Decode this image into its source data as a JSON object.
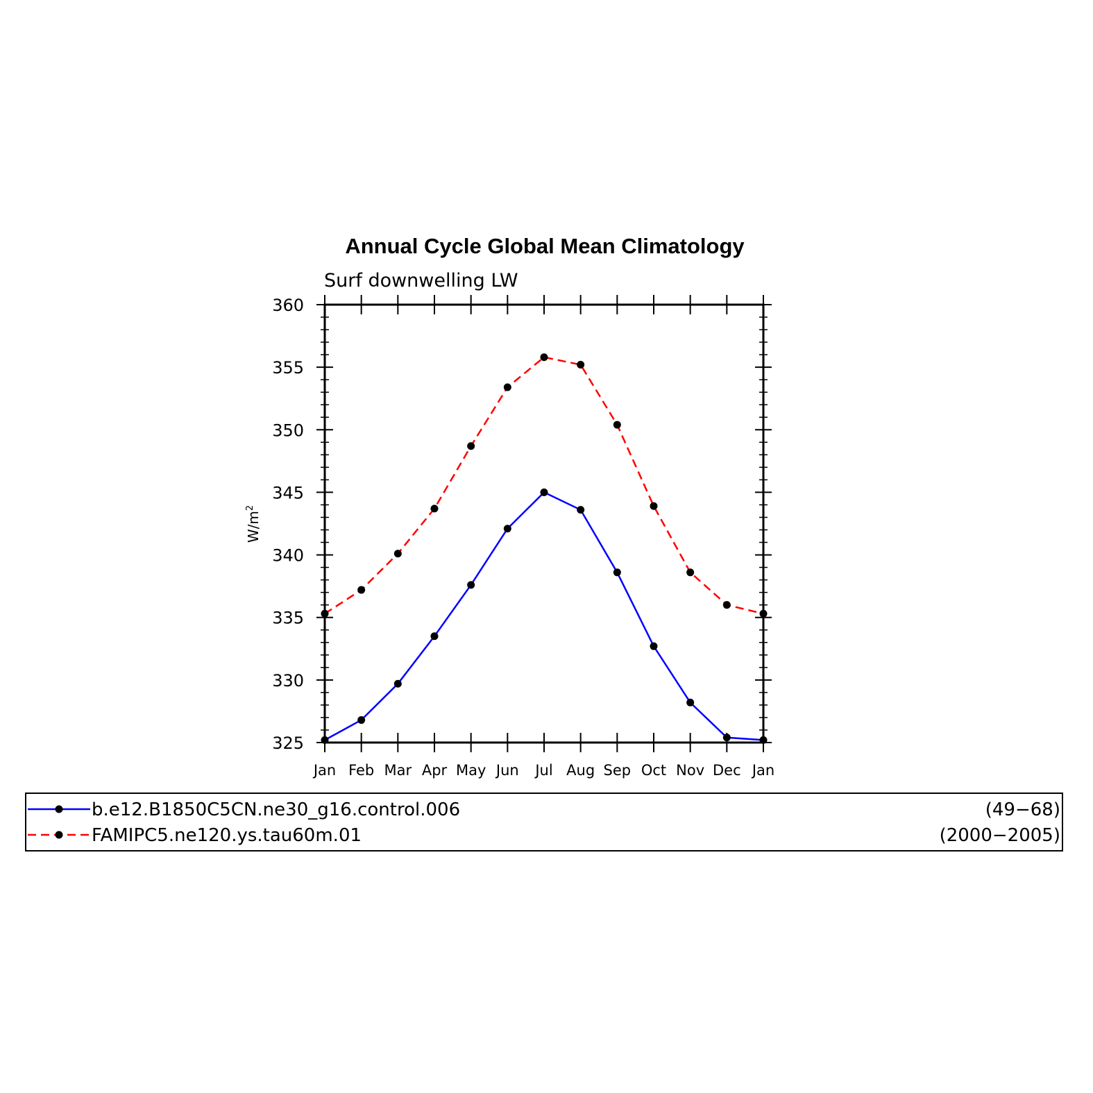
{
  "chart_data": {
    "type": "line",
    "title": "Annual Cycle Global Mean Climatology",
    "subtitle": "Surf downwelling LW",
    "ylabel": "W/m",
    "ylabel_sup": "2",
    "xlabel": "",
    "categories": [
      "Jan",
      "Feb",
      "Mar",
      "Apr",
      "May",
      "Jun",
      "Jul",
      "Aug",
      "Sep",
      "Oct",
      "Nov",
      "Dec",
      "Jan"
    ],
    "ylim": [
      325,
      360
    ],
    "yticks": [
      325,
      330,
      335,
      340,
      345,
      350,
      355,
      360
    ],
    "ytick_labels": [
      "325",
      "330",
      "335",
      "340",
      "345",
      "350",
      "355",
      "360"
    ],
    "grid": false,
    "legend_position": "bottom",
    "series": [
      {
        "name": "b.e12.B1850C5CN.ne30_g16.control.006",
        "years": "(49−68)",
        "color": "#0000ff",
        "linestyle": "solid",
        "marker_color": "#000000",
        "values": [
          325.2,
          326.8,
          329.7,
          333.5,
          337.6,
          342.1,
          345.0,
          343.6,
          338.6,
          332.7,
          328.2,
          325.4,
          325.2
        ]
      },
      {
        "name": "FAMIPC5.ne120.ys.tau60m.01",
        "years": "(2000−2005)",
        "color": "#ff0000",
        "linestyle": "dashed",
        "marker_color": "#000000",
        "values": [
          335.3,
          337.2,
          340.1,
          343.7,
          348.7,
          353.4,
          355.8,
          355.2,
          350.4,
          343.9,
          338.6,
          336.0,
          335.3
        ]
      }
    ]
  }
}
